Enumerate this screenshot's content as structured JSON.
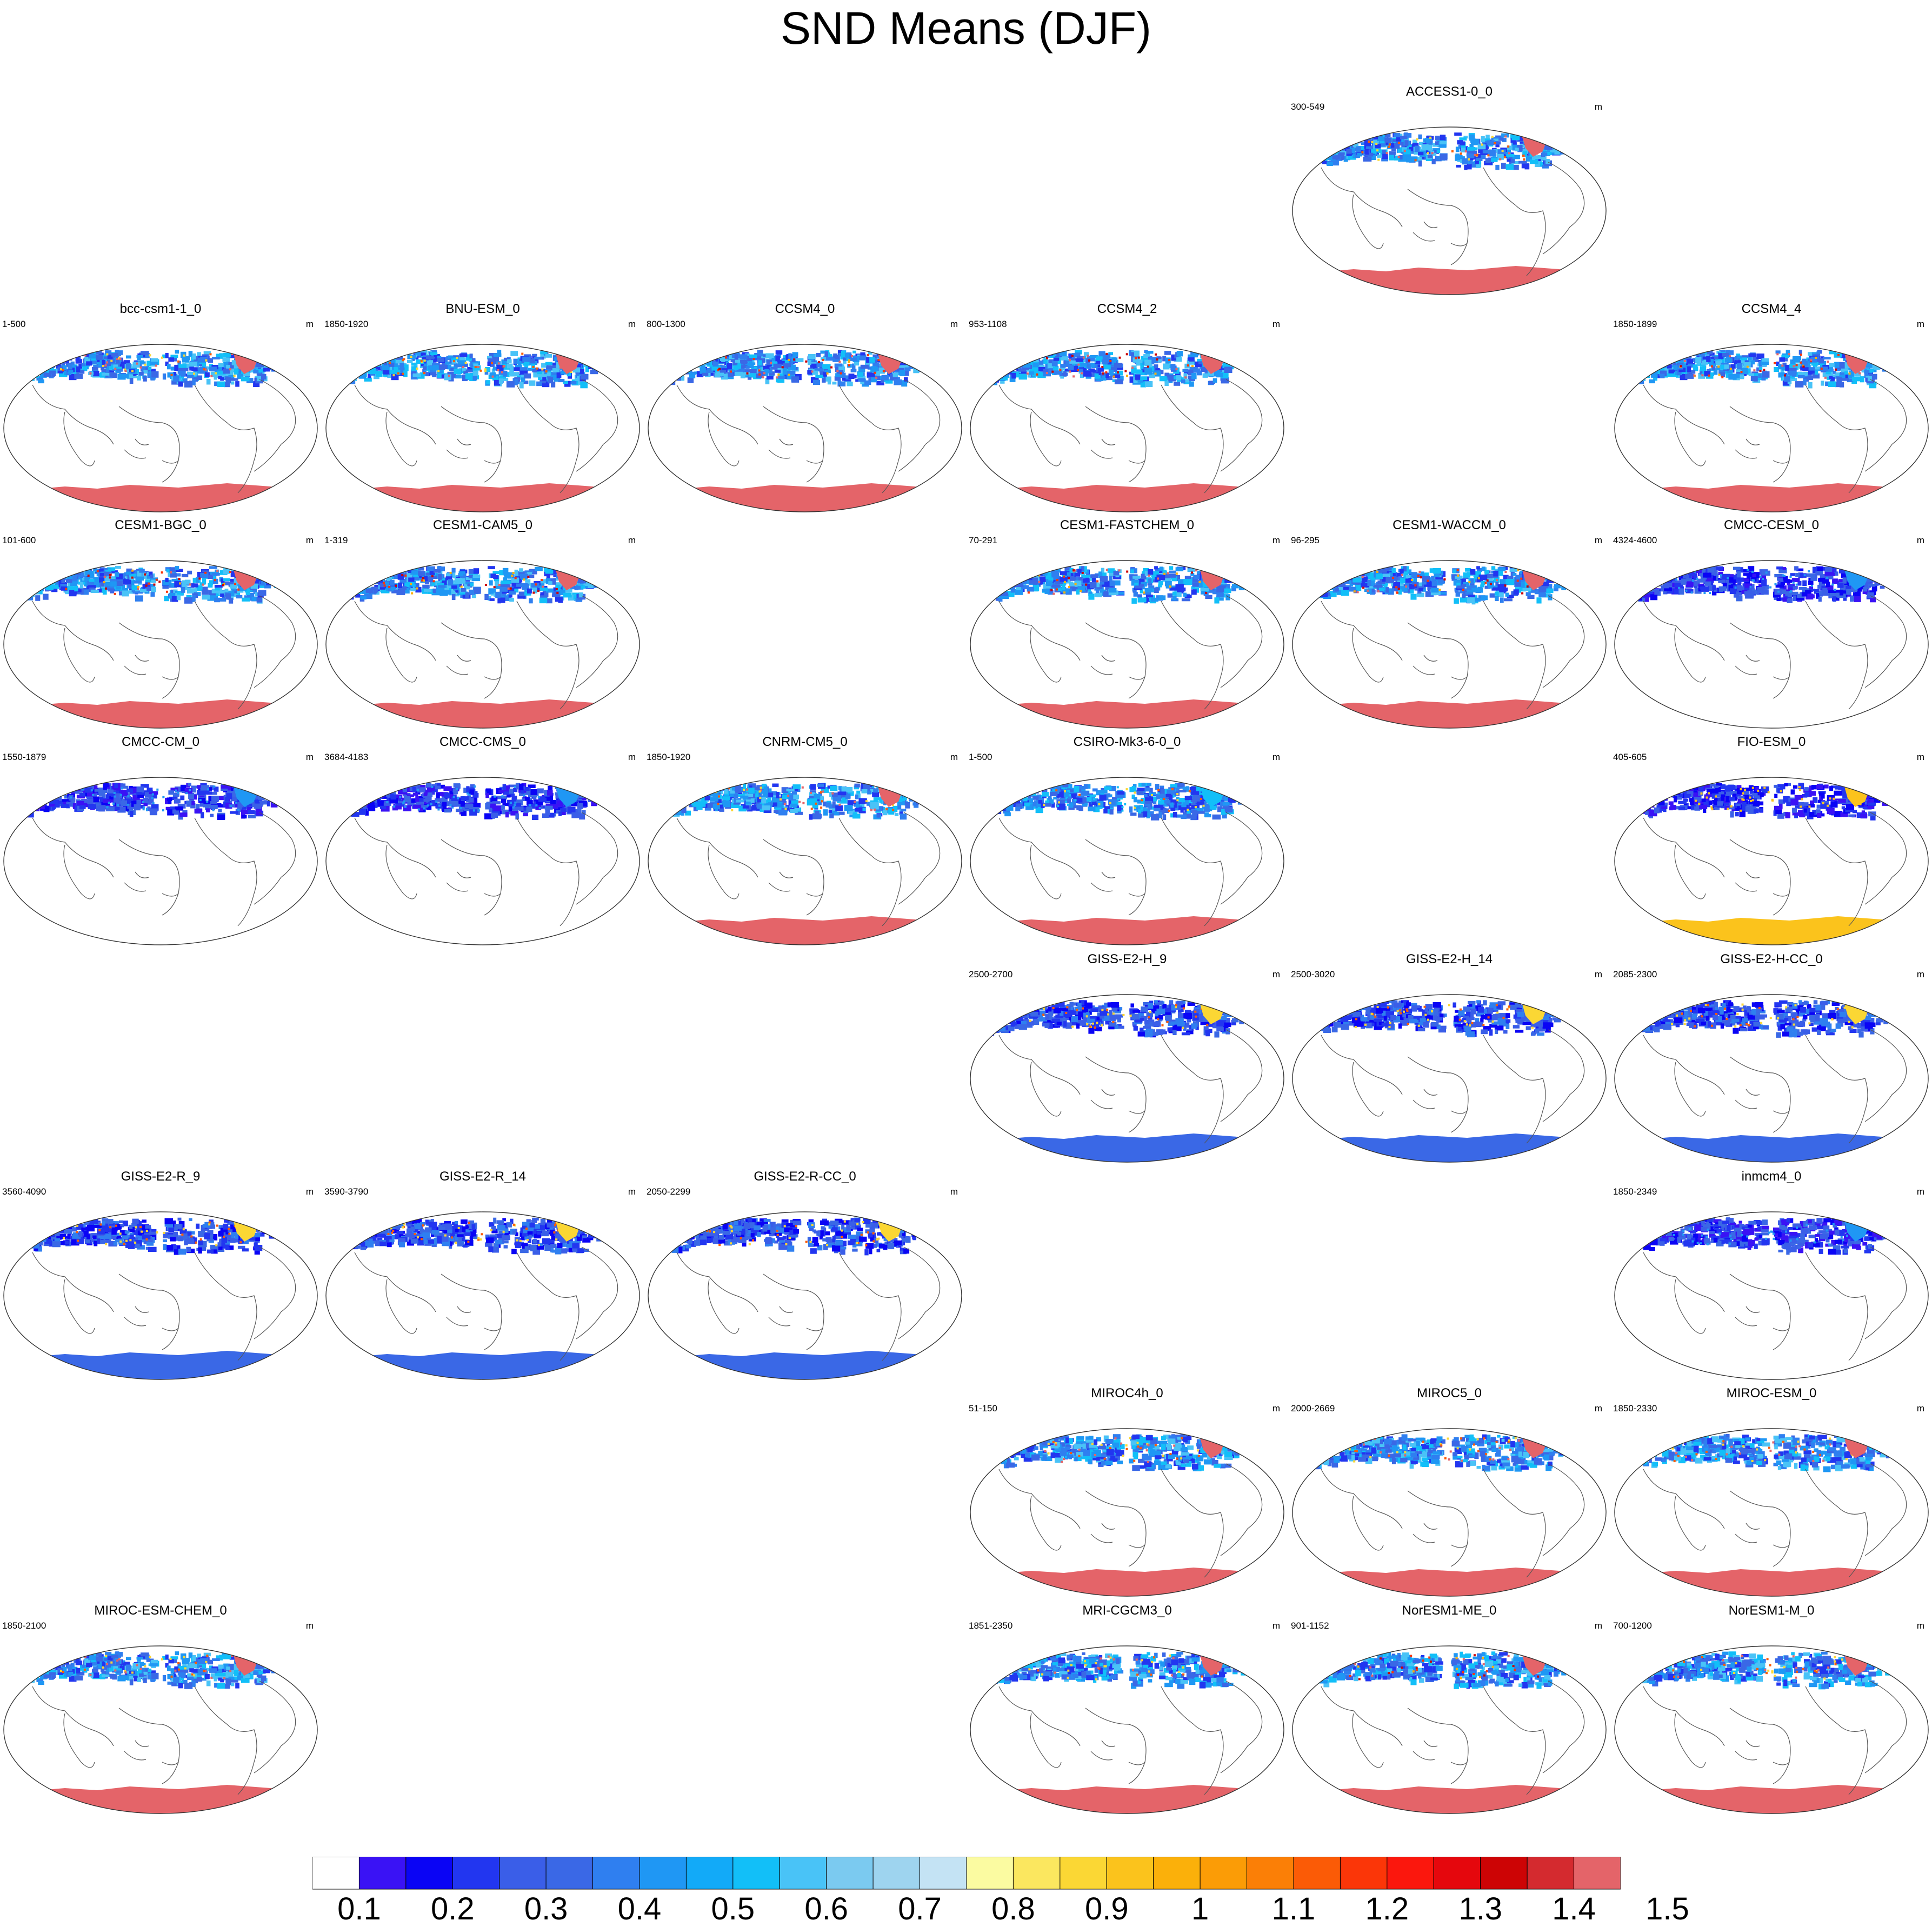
{
  "title": "SND Means (DJF)",
  "unit": "m",
  "colorbar": {
    "colors": [
      "#ffffff",
      "#3a12f5",
      "#0a04f5",
      "#2236f0",
      "#3a5ee8",
      "#3a68e6",
      "#2f7ff0",
      "#1f97f4",
      "#12aaf8",
      "#12bff8",
      "#49c3f7",
      "#7bcaf0",
      "#9ed4ef",
      "#c4e3f4",
      "#fbfba1",
      "#fbe75f",
      "#fbd734",
      "#fbc31c",
      "#fbb00a",
      "#fb9c06",
      "#fb7f06",
      "#fb5b06",
      "#fb3608",
      "#fb170d",
      "#e5070d",
      "#cd0405",
      "#d42a2f",
      "#e46469"
    ],
    "labels": [
      "0.1",
      "0.2",
      "0.3",
      "0.4",
      "0.5",
      "0.6",
      "0.7",
      "0.8",
      "0.9",
      "1",
      "1.1",
      "1.2",
      "1.3",
      "1.4",
      "1.5"
    ]
  },
  "panels": [
    {
      "name": "ACCESS1-0_0",
      "range": "300-549",
      "col": 4,
      "row": 0,
      "palette": "red"
    },
    {
      "name": "bcc-csm1-1_0",
      "range": "1-500",
      "col": 0,
      "row": 1,
      "palette": "red"
    },
    {
      "name": "BNU-ESM_0",
      "range": "1850-1920",
      "col": 1,
      "row": 1,
      "palette": "red"
    },
    {
      "name": "CCSM4_0",
      "range": "800-1300",
      "col": 2,
      "row": 1,
      "palette": "deepred"
    },
    {
      "name": "CCSM4_2",
      "range": "953-1108",
      "col": 3,
      "row": 1,
      "palette": "deepred"
    },
    {
      "name": "CCSM4_4",
      "range": "1850-1899",
      "col": 5,
      "row": 1,
      "palette": "deepred"
    },
    {
      "name": "CESM1-BGC_0",
      "range": "101-600",
      "col": 0,
      "row": 2,
      "palette": "deepred"
    },
    {
      "name": "CESM1-CAM5_0",
      "range": "1-319",
      "col": 1,
      "row": 2,
      "palette": "deepred"
    },
    {
      "name": "CESM1-FASTCHEM_0",
      "range": "70-291",
      "col": 3,
      "row": 2,
      "palette": "deepred"
    },
    {
      "name": "CESM1-WACCM_0",
      "range": "96-295",
      "col": 4,
      "row": 2,
      "palette": "deepred"
    },
    {
      "name": "CMCC-CESM_0",
      "range": "4324-4600",
      "col": 5,
      "row": 2,
      "palette": "none"
    },
    {
      "name": "CMCC-CM_0",
      "range": "1550-1879",
      "col": 0,
      "row": 3,
      "palette": "none"
    },
    {
      "name": "CMCC-CMS_0",
      "range": "3684-4183",
      "col": 1,
      "row": 3,
      "palette": "none"
    },
    {
      "name": "CNRM-CM5_0",
      "range": "1850-1920",
      "col": 2,
      "row": 3,
      "palette": "red"
    },
    {
      "name": "CSIRO-Mk3-6-0_0",
      "range": "1-500",
      "col": 3,
      "row": 3,
      "palette": "mixed"
    },
    {
      "name": "FIO-ESM_0",
      "range": "405-605",
      "col": 5,
      "row": 3,
      "palette": "yellow"
    },
    {
      "name": "GISS-E2-H_9",
      "range": "2500-2700",
      "col": 3,
      "row": 4,
      "palette": "blue"
    },
    {
      "name": "GISS-E2-H_14",
      "range": "2500-3020",
      "col": 4,
      "row": 4,
      "palette": "blue"
    },
    {
      "name": "GISS-E2-H-CC_0",
      "range": "2085-2300",
      "col": 5,
      "row": 4,
      "palette": "blue"
    },
    {
      "name": "GISS-E2-R_9",
      "range": "3560-4090",
      "col": 0,
      "row": 5,
      "palette": "blue"
    },
    {
      "name": "GISS-E2-R_14",
      "range": "3590-3790",
      "col": 1,
      "row": 5,
      "palette": "blue"
    },
    {
      "name": "GISS-E2-R-CC_0",
      "range": "2050-2299",
      "col": 2,
      "row": 5,
      "palette": "blue"
    },
    {
      "name": "inmcm4_0",
      "range": "1850-2349",
      "col": 5,
      "row": 5,
      "palette": "none"
    },
    {
      "name": "MIROC4h_0",
      "range": "51-150",
      "col": 3,
      "row": 6,
      "palette": "red"
    },
    {
      "name": "MIROC5_0",
      "range": "2000-2669",
      "col": 4,
      "row": 6,
      "palette": "red"
    },
    {
      "name": "MIROC-ESM_0",
      "range": "1850-2330",
      "col": 5,
      "row": 6,
      "palette": "red"
    },
    {
      "name": "MIROC-ESM-CHEM_0",
      "range": "1850-2100",
      "col": 0,
      "row": 7,
      "palette": "red"
    },
    {
      "name": "MRI-CGCM3_0",
      "range": "1851-2350",
      "col": 3,
      "row": 7,
      "palette": "red"
    },
    {
      "name": "NorESM1-ME_0",
      "range": "901-1152",
      "col": 4,
      "row": 7,
      "palette": "deepred"
    },
    {
      "name": "NorESM1-M_0",
      "range": "700-1200",
      "col": 5,
      "row": 7,
      "palette": "red"
    }
  ]
}
